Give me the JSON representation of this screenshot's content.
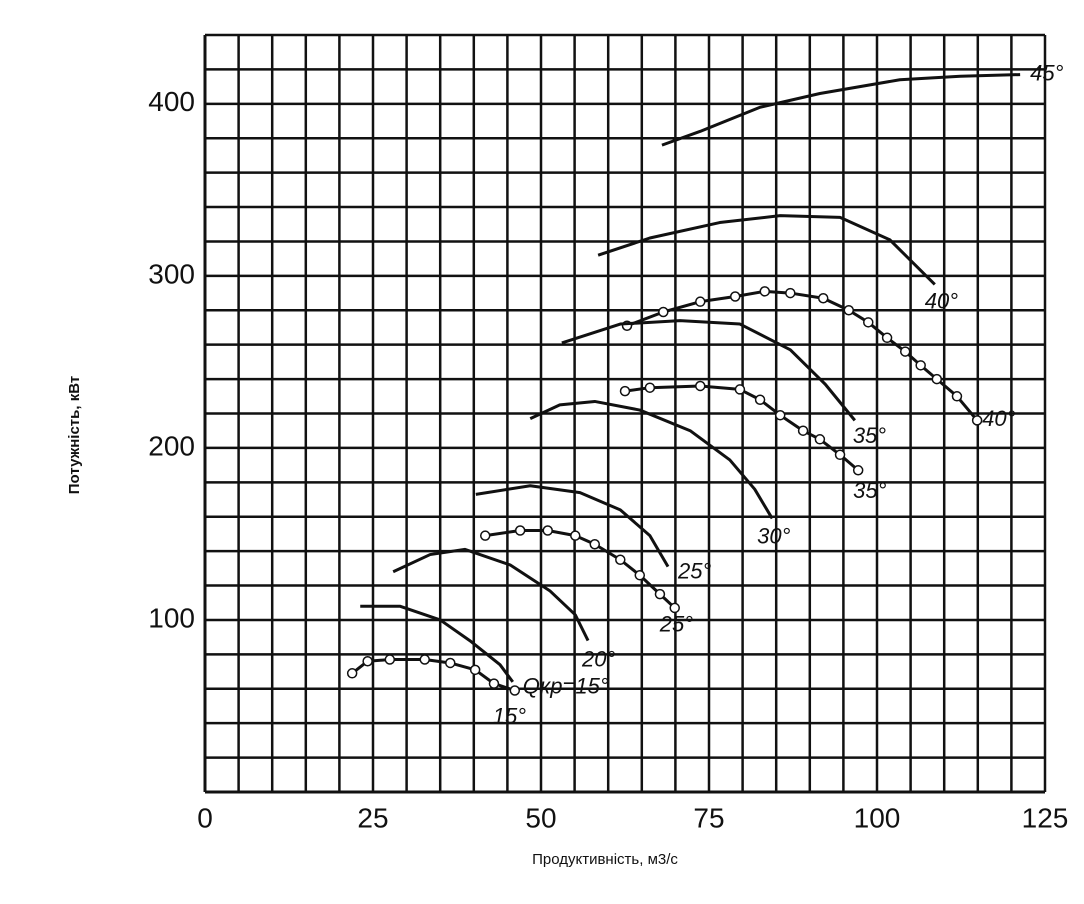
{
  "chart_data": {
    "type": "line",
    "x_label": "Продуктивність, м3/с",
    "y_label": "Потужність, кВт",
    "xlim": [
      0,
      125
    ],
    "xticks": [
      0,
      25,
      50,
      75,
      100,
      125
    ],
    "ylim": [
      0,
      440
    ],
    "yticks": [
      100,
      200,
      300,
      400
    ],
    "xgrid": [
      0,
      5,
      10,
      15,
      20,
      25,
      30,
      35,
      40,
      45,
      50,
      55,
      60,
      65,
      70,
      75,
      80,
      85,
      90,
      95,
      100,
      105,
      110,
      115,
      120,
      125
    ],
    "ygrid": [
      0,
      20,
      40,
      60,
      80,
      100,
      120,
      140,
      160,
      180,
      200,
      220,
      240,
      260,
      280,
      300,
      320,
      340,
      360,
      380,
      400,
      420,
      440
    ],
    "grid": true,
    "series": [
      {
        "name": "45°",
        "color": "#111111",
        "marker": "none",
        "x": [
          68.0,
          73.7,
          82.6,
          91.5,
          103.4,
          112.4,
          121.3
        ],
        "values": [
          376,
          384,
          398,
          406,
          414,
          416,
          417
        ]
      },
      {
        "name": "40°",
        "color": "#111111",
        "marker": "none",
        "x": [
          58.5,
          66.2,
          76.6,
          85.6,
          94.5,
          101.9,
          108.6
        ],
        "values": [
          312,
          322,
          331,
          335,
          334,
          321,
          295
        ]
      },
      {
        "name": "40°",
        "color": "#111111",
        "marker": "circle",
        "x": [
          62.8,
          68.2,
          73.7,
          78.9,
          83.3,
          87.1,
          92.0,
          95.8,
          98.7,
          101.5,
          104.2,
          106.5,
          108.9,
          111.9,
          114.9
        ],
        "values": [
          271,
          279,
          285,
          288,
          291,
          290,
          287,
          280,
          273,
          264,
          256,
          248,
          240,
          230,
          216
        ]
      },
      {
        "name": "35°",
        "color": "#111111",
        "marker": "none",
        "x": [
          53.1,
          61.8,
          70.7,
          79.6,
          87.1,
          92.3,
          96.7
        ],
        "values": [
          261,
          272,
          274,
          272,
          257,
          237,
          216
        ]
      },
      {
        "name": "35°",
        "color": "#111111",
        "marker": "circle",
        "x": [
          62.5,
          66.2,
          73.7,
          79.6,
          82.6,
          85.6,
          89.0,
          91.5,
          94.5,
          97.2
        ],
        "values": [
          233,
          235,
          236,
          234,
          228,
          219,
          210,
          205,
          196,
          187
        ]
      },
      {
        "name": "30°",
        "color": "#111111",
        "marker": "none",
        "x": [
          48.4,
          52.8,
          58.0,
          64.7,
          72.2,
          78.1,
          81.8,
          84.4
        ],
        "values": [
          217,
          225,
          227,
          222,
          210,
          193,
          176,
          159
        ]
      },
      {
        "name": "25°",
        "color": "#111111",
        "marker": "none",
        "x": [
          40.3,
          48.4,
          55.8,
          61.8,
          66.2,
          68.9
        ],
        "values": [
          173,
          178,
          174,
          164,
          149,
          131
        ]
      },
      {
        "name": "25°",
        "color": "#111111",
        "marker": "circle",
        "x": [
          41.7,
          46.9,
          51.0,
          55.1,
          58.0,
          61.8,
          64.7,
          67.7,
          69.9
        ],
        "values": [
          149,
          152,
          152,
          149,
          144,
          135,
          126,
          115,
          107
        ]
      },
      {
        "name": "20°",
        "color": "#111111",
        "marker": "none",
        "x": [
          28.0,
          33.5,
          38.7,
          45.4,
          51.3,
          55.1,
          57.0
        ],
        "values": [
          128,
          138,
          141,
          132,
          117,
          103,
          88
        ]
      },
      {
        "name": "Qкр=15°",
        "color": "#111111",
        "marker": "none",
        "x": [
          23.1,
          29.0,
          35.0,
          39.4,
          43.9,
          45.8
        ],
        "values": [
          108,
          108,
          100,
          88,
          74,
          64
        ]
      },
      {
        "name": "15°",
        "color": "#111111",
        "marker": "circle",
        "x": [
          21.9,
          24.2,
          27.5,
          32.7,
          36.5,
          40.2,
          43.0,
          46.1
        ],
        "values": [
          69,
          76,
          77,
          77,
          75,
          71,
          63,
          59
        ]
      }
    ]
  }
}
